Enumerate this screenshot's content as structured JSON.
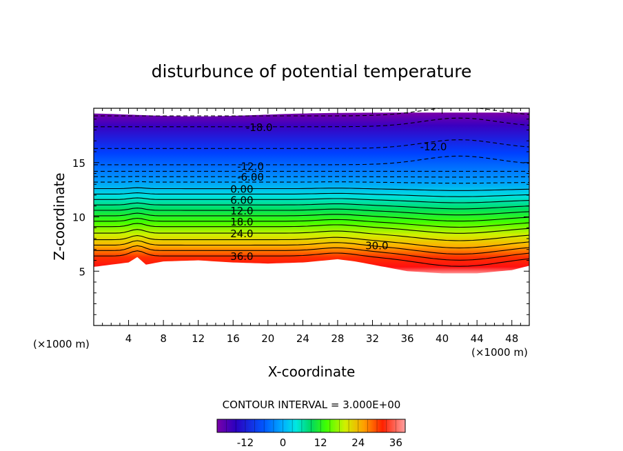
{
  "chart_data": {
    "type": "contour",
    "title": "disturbunce of potential temperature",
    "xlabel": "X-coordinate",
    "ylabel": "Z-coordinate",
    "x_unit_left": "(×1000 m)",
    "x_unit_right": "(×1000 m)",
    "xlim": [
      0,
      50
    ],
    "ylim": [
      0,
      20
    ],
    "xticks": [
      "4",
      "8",
      "12",
      "16",
      "20",
      "24",
      "28",
      "32",
      "36",
      "40",
      "44",
      "48"
    ],
    "yticks": [
      "5",
      "10",
      "15"
    ],
    "contour_interval_text": "CONTOUR INTERVAL = 3.000E+00",
    "contour_interval": 3.0,
    "value_range": [
      -21,
      39
    ],
    "colorbar_ticks": [
      "-12",
      "0",
      "12",
      "24",
      "36"
    ],
    "colorbar_tick_values": [
      -12,
      0,
      12,
      24,
      36
    ],
    "terrain_profile": {
      "x": [
        0,
        2,
        4,
        5,
        6,
        8,
        12,
        16,
        20,
        24,
        28,
        30,
        32,
        36,
        40,
        44,
        48,
        50
      ],
      "z": [
        5.4,
        5.6,
        5.8,
        6.3,
        5.6,
        5.9,
        6.0,
        5.8,
        5.7,
        5.8,
        6.1,
        5.9,
        5.6,
        5.0,
        4.8,
        4.8,
        5.1,
        5.5
      ]
    },
    "isolines": [
      {
        "level": 36,
        "label": "36.0",
        "label_x": 17,
        "label_z": 6.4
      },
      {
        "level": 30,
        "label": "30.0",
        "label_x": 32.5,
        "label_z": 7.4
      },
      {
        "level": 24,
        "label": "24.0",
        "label_x": 17,
        "label_z": 8.5
      },
      {
        "level": 18,
        "label": "18.0",
        "label_x": 17,
        "label_z": 9.6
      },
      {
        "level": 12,
        "label": "12.0",
        "label_x": 17,
        "label_z": 10.6
      },
      {
        "level": 6,
        "label": "6.00",
        "label_x": 17,
        "label_z": 11.6
      },
      {
        "level": 0,
        "label": "0.00",
        "label_x": 17,
        "label_z": 12.6
      },
      {
        "level": -6,
        "label": "-6.00",
        "label_x": 18,
        "label_z": 13.7
      },
      {
        "level": -12,
        "label": "-12.0",
        "label_x": 18,
        "label_z": 14.7
      },
      {
        "level": -12,
        "label": "-12.0",
        "label_x": 39,
        "label_z": 16.5
      },
      {
        "level": -18,
        "label": "-18.0",
        "label_x": 19,
        "label_z": 18.3
      },
      {
        "level": 30,
        "label": "",
        "label_x": null,
        "label_z": null
      }
    ],
    "grid": false,
    "colormap": [
      "#7a00a8",
      "#2a00c0",
      "#0040ff",
      "#00a8ff",
      "#00e8e0",
      "#00e060",
      "#40ff00",
      "#c0f000",
      "#ffd000",
      "#ff7000",
      "#ff1000",
      "#ff8080"
    ]
  }
}
